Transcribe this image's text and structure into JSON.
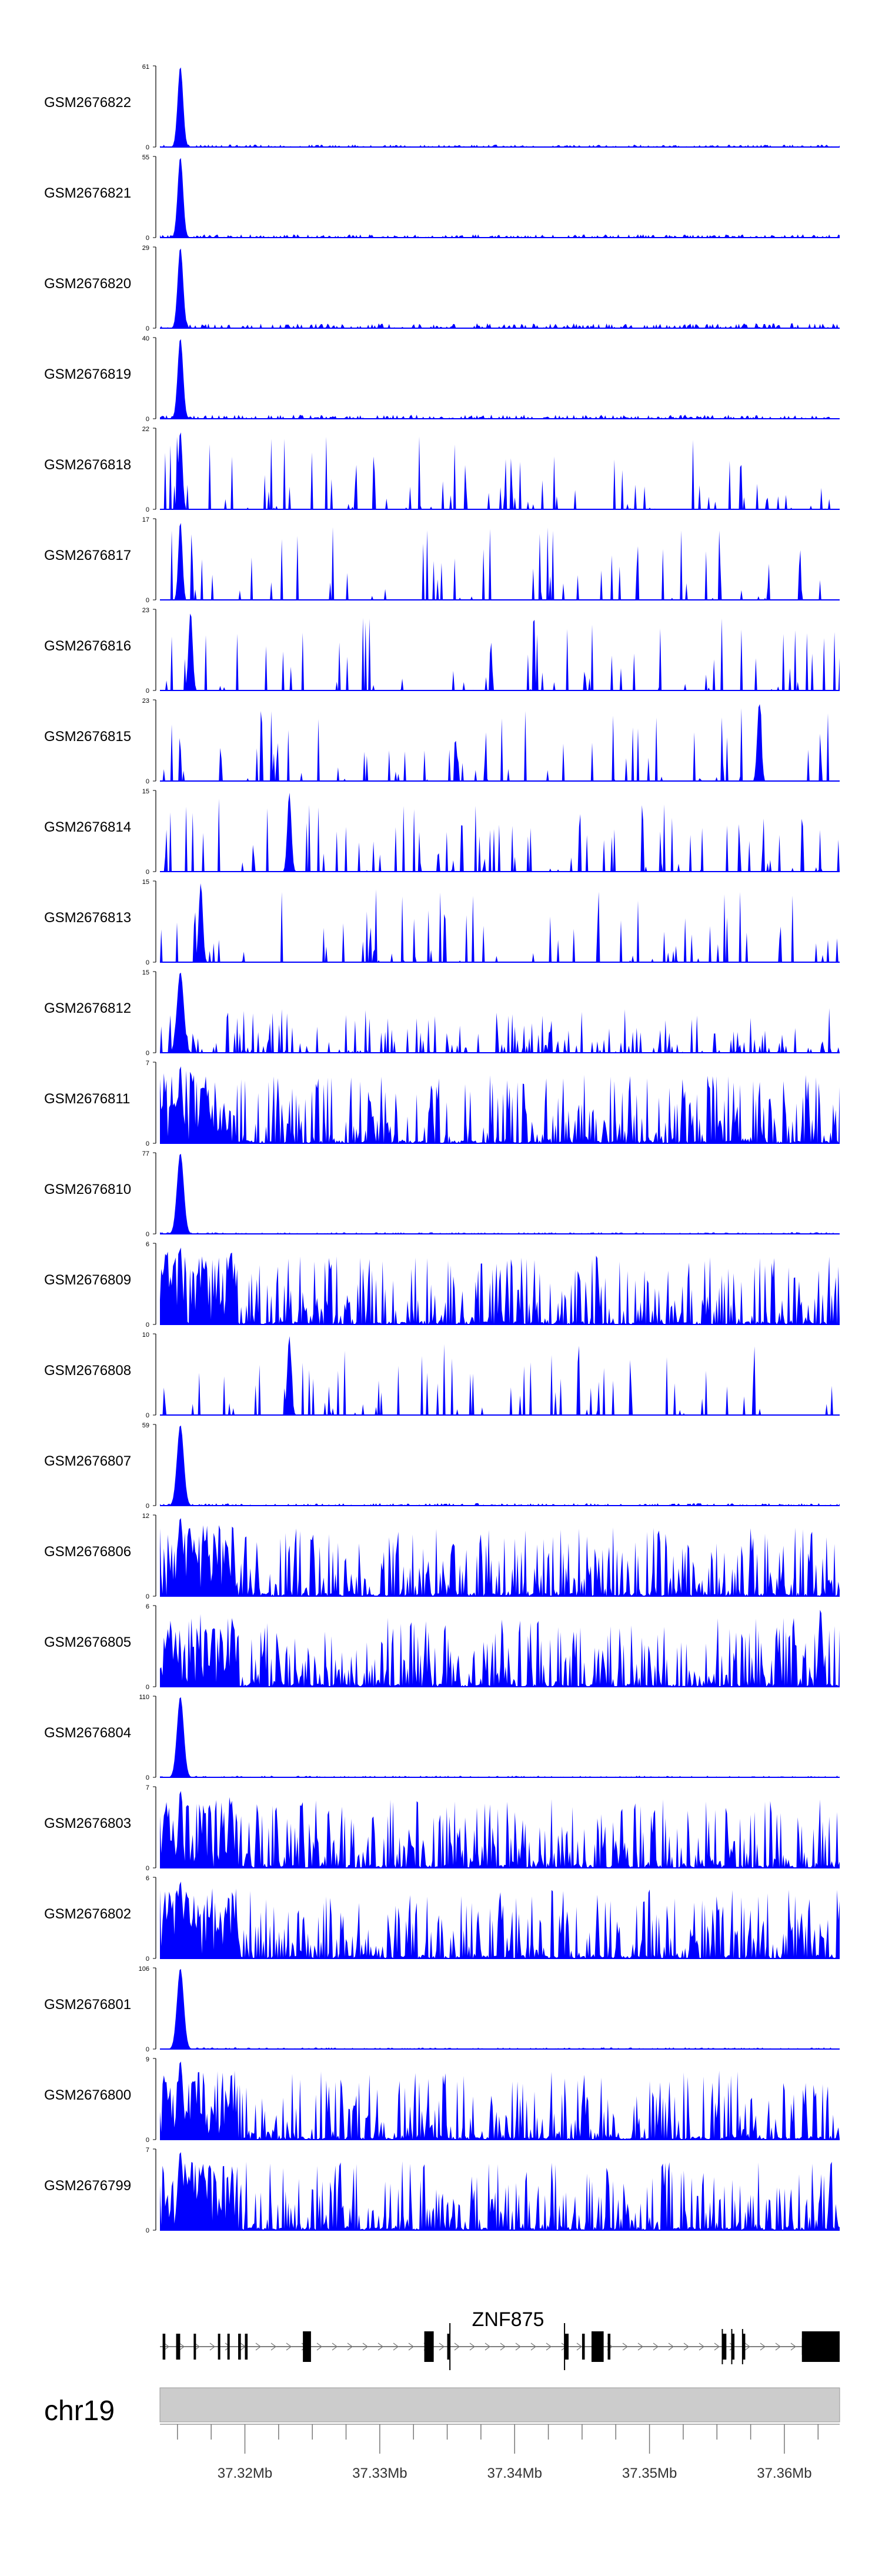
{
  "chart_data": {
    "type": "area",
    "title": "",
    "xlabel": "",
    "ylabel": "",
    "chromosome": "chr19",
    "x_range_mb": [
      37.3137,
      37.3641
    ],
    "x_ticks": [
      "37.32Mb",
      "37.33Mb",
      "37.34Mb",
      "37.35Mb",
      "37.36Mb"
    ],
    "x_tick_values": [
      37.32,
      37.33,
      37.34,
      37.35,
      37.36
    ],
    "fill_color": "#0000ff",
    "gene": {
      "name": "ZNF875",
      "strand": "+",
      "start_mb": 37.3137,
      "end_mb": 37.3641,
      "exons_mb": [
        [
          37.3139,
          37.3141
        ],
        [
          37.3149,
          37.3152
        ],
        [
          37.3162,
          37.3163
        ],
        [
          37.318,
          37.3181
        ],
        [
          37.3187,
          37.3188
        ],
        [
          37.3195,
          37.3197
        ],
        [
          37.32,
          37.3202
        ],
        [
          37.3243,
          37.3249
        ],
        [
          37.3333,
          37.334
        ],
        [
          37.335,
          37.3351
        ],
        [
          37.3437,
          37.344
        ],
        [
          37.345,
          37.3452
        ],
        [
          37.3457,
          37.3466
        ],
        [
          37.3469,
          37.3471
        ],
        [
          37.3554,
          37.3557
        ],
        [
          37.3561,
          37.3563
        ],
        [
          37.3569,
          37.3571
        ],
        [
          37.3613,
          37.3641
        ]
      ],
      "utr_mb": [
        [
          37.3613,
          37.3618
        ],
        [
          37.3633,
          37.3641
        ]
      ]
    },
    "tracks": [
      {
        "name": "GSM2676822",
        "ymax": 61,
        "profile": "peak",
        "peak_pos": 0.03,
        "peak_width": 0.004,
        "bg": 0.03
      },
      {
        "name": "GSM2676821",
        "ymax": 55,
        "profile": "peak",
        "peak_pos": 0.03,
        "peak_width": 0.004,
        "bg": 0.04
      },
      {
        "name": "GSM2676820",
        "ymax": 29,
        "profile": "peak",
        "peak_pos": 0.03,
        "peak_width": 0.004,
        "bg": 0.06
      },
      {
        "name": "GSM2676819",
        "ymax": 40,
        "profile": "peak",
        "peak_pos": 0.03,
        "peak_width": 0.004,
        "bg": 0.05
      },
      {
        "name": "GSM2676818",
        "ymax": 22,
        "profile": "sparse",
        "peak_pos": 0.03,
        "peak_width": 0.003,
        "bg": 0.25
      },
      {
        "name": "GSM2676817",
        "ymax": 17,
        "profile": "sparse",
        "peak_pos": 0.03,
        "peak_width": 0.003,
        "bg": 0.45
      },
      {
        "name": "GSM2676816",
        "ymax": 23,
        "profile": "sparse",
        "peak_pos": 0.045,
        "peak_width": 0.003,
        "bg": 0.3
      },
      {
        "name": "GSM2676815",
        "ymax": 23,
        "profile": "sparse",
        "peak_pos": 0.88,
        "peak_width": 0.003,
        "bg": 0.45
      },
      {
        "name": "GSM2676814",
        "ymax": 15,
        "profile": "sparse",
        "peak_pos": 0.19,
        "peak_width": 0.003,
        "bg": 0.35
      },
      {
        "name": "GSM2676813",
        "ymax": 15,
        "profile": "sparse",
        "peak_pos": 0.06,
        "peak_width": 0.003,
        "bg": 0.4
      },
      {
        "name": "GSM2676812",
        "ymax": 15,
        "profile": "peakish",
        "peak_pos": 0.03,
        "peak_width": 0.005,
        "bg": 0.2
      },
      {
        "name": "GSM2676811",
        "ymax": 7,
        "profile": "dense",
        "peak_pos": 0.03,
        "peak_width": 0.003,
        "bg": 0.4
      },
      {
        "name": "GSM2676810",
        "ymax": 77,
        "profile": "peak",
        "peak_pos": 0.03,
        "peak_width": 0.005,
        "bg": 0.02
      },
      {
        "name": "GSM2676809",
        "ymax": 6,
        "profile": "dense",
        "peak_pos": 0.03,
        "peak_width": 0.003,
        "bg": 0.4
      },
      {
        "name": "GSM2676808",
        "ymax": 10,
        "profile": "sparse",
        "peak_pos": 0.19,
        "peak_width": 0.003,
        "bg": 0.4
      },
      {
        "name": "GSM2676807",
        "ymax": 59,
        "profile": "peak",
        "peak_pos": 0.03,
        "peak_width": 0.005,
        "bg": 0.03
      },
      {
        "name": "GSM2676806",
        "ymax": 12,
        "profile": "dense",
        "peak_pos": 0.03,
        "peak_width": 0.004,
        "bg": 0.25
      },
      {
        "name": "GSM2676805",
        "ymax": 6,
        "profile": "dense",
        "peak_pos": 0.97,
        "peak_width": 0.003,
        "bg": 0.45
      },
      {
        "name": "GSM2676804",
        "ymax": 110,
        "profile": "peak",
        "peak_pos": 0.03,
        "peak_width": 0.005,
        "bg": 0.02
      },
      {
        "name": "GSM2676803",
        "ymax": 7,
        "profile": "dense",
        "peak_pos": 0.03,
        "peak_width": 0.003,
        "bg": 0.4
      },
      {
        "name": "GSM2676802",
        "ymax": 6,
        "profile": "dense",
        "peak_pos": 0.03,
        "peak_width": 0.003,
        "bg": 0.4
      },
      {
        "name": "GSM2676801",
        "ymax": 106,
        "profile": "peak",
        "peak_pos": 0.03,
        "peak_width": 0.005,
        "bg": 0.02
      },
      {
        "name": "GSM2676800",
        "ymax": 9,
        "profile": "dense",
        "peak_pos": 0.03,
        "peak_width": 0.004,
        "bg": 0.4
      },
      {
        "name": "GSM2676799",
        "ymax": 7,
        "profile": "dense",
        "peak_pos": 0.03,
        "peak_width": 0.004,
        "bg": 0.4
      }
    ]
  }
}
